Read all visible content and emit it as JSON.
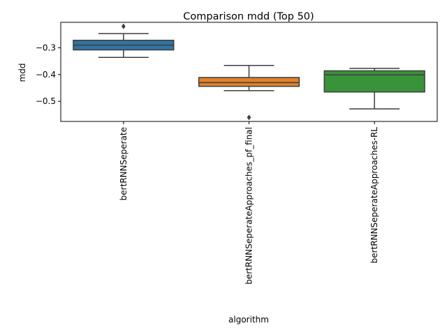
{
  "chart_data": {
    "type": "box",
    "title": "Comparison mdd (Top 50)",
    "xlabel": "algorithm",
    "ylabel": "mdd",
    "ylim": [
      -0.575,
      -0.205
    ],
    "yticks": [
      -0.3,
      -0.4,
      -0.5
    ],
    "ytick_labels": [
      "−0.3",
      "−0.4",
      "−0.5"
    ],
    "grid": false,
    "categories": [
      "bertRNNSeperate",
      "bertRNNSeperateApproaches_pf_final",
      "bertRNNSeperateApproaches-RL"
    ],
    "boxes": [
      {
        "color": "#3274a1",
        "whisker_low": -0.336,
        "q1": -0.308,
        "median": -0.29,
        "q3": -0.272,
        "whisker_high": -0.247,
        "outliers": [
          -0.22
        ]
      },
      {
        "color": "#e1812c",
        "whisker_low": -0.46,
        "q1": -0.444,
        "median": -0.43,
        "q3": -0.411,
        "whisker_high": -0.366,
        "outliers": [
          -0.56
        ]
      },
      {
        "color": "#3a923a",
        "whisker_low": -0.528,
        "q1": -0.465,
        "median": -0.401,
        "q3": -0.386,
        "whisker_high": -0.377,
        "outliers": []
      }
    ]
  }
}
